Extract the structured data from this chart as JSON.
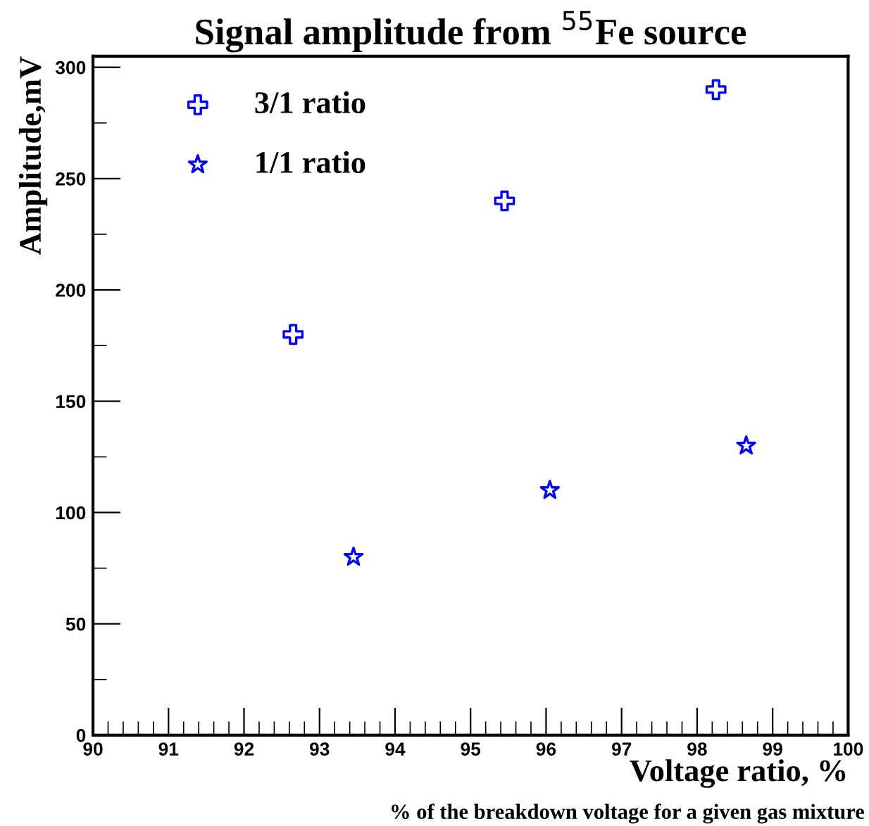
{
  "chart_data": {
    "type": "scatter",
    "title": "Signal amplitude from $^{55}$Fe source",
    "xlabel": "Voltage ratio, %",
    "ylabel": "Amplitude,mV",
    "annotations": [
      "% of the breakdown voltage for a given gas mixture"
    ],
    "series": [
      {
        "name": "3/1 ratio",
        "color": "#0000ff",
        "marker": "cross",
        "x": [
          92.65,
          95.45,
          98.25
        ],
        "values": [
          180,
          240,
          290
        ]
      },
      {
        "name": "1/1 ratio",
        "color": "#0000ff",
        "marker": "star",
        "x": [
          93.45,
          96.05,
          98.65
        ],
        "values": [
          80,
          110,
          130
        ]
      }
    ],
    "xlim": [
      90,
      100
    ],
    "xticks": [
      90,
      91,
      92,
      93,
      94,
      95,
      96,
      97,
      98,
      99,
      100
    ],
    "ylim": [
      0,
      305
    ],
    "yticks": [
      0,
      50,
      100,
      150,
      200,
      250,
      300
    ],
    "grid": false,
    "legend": "top left"
  }
}
